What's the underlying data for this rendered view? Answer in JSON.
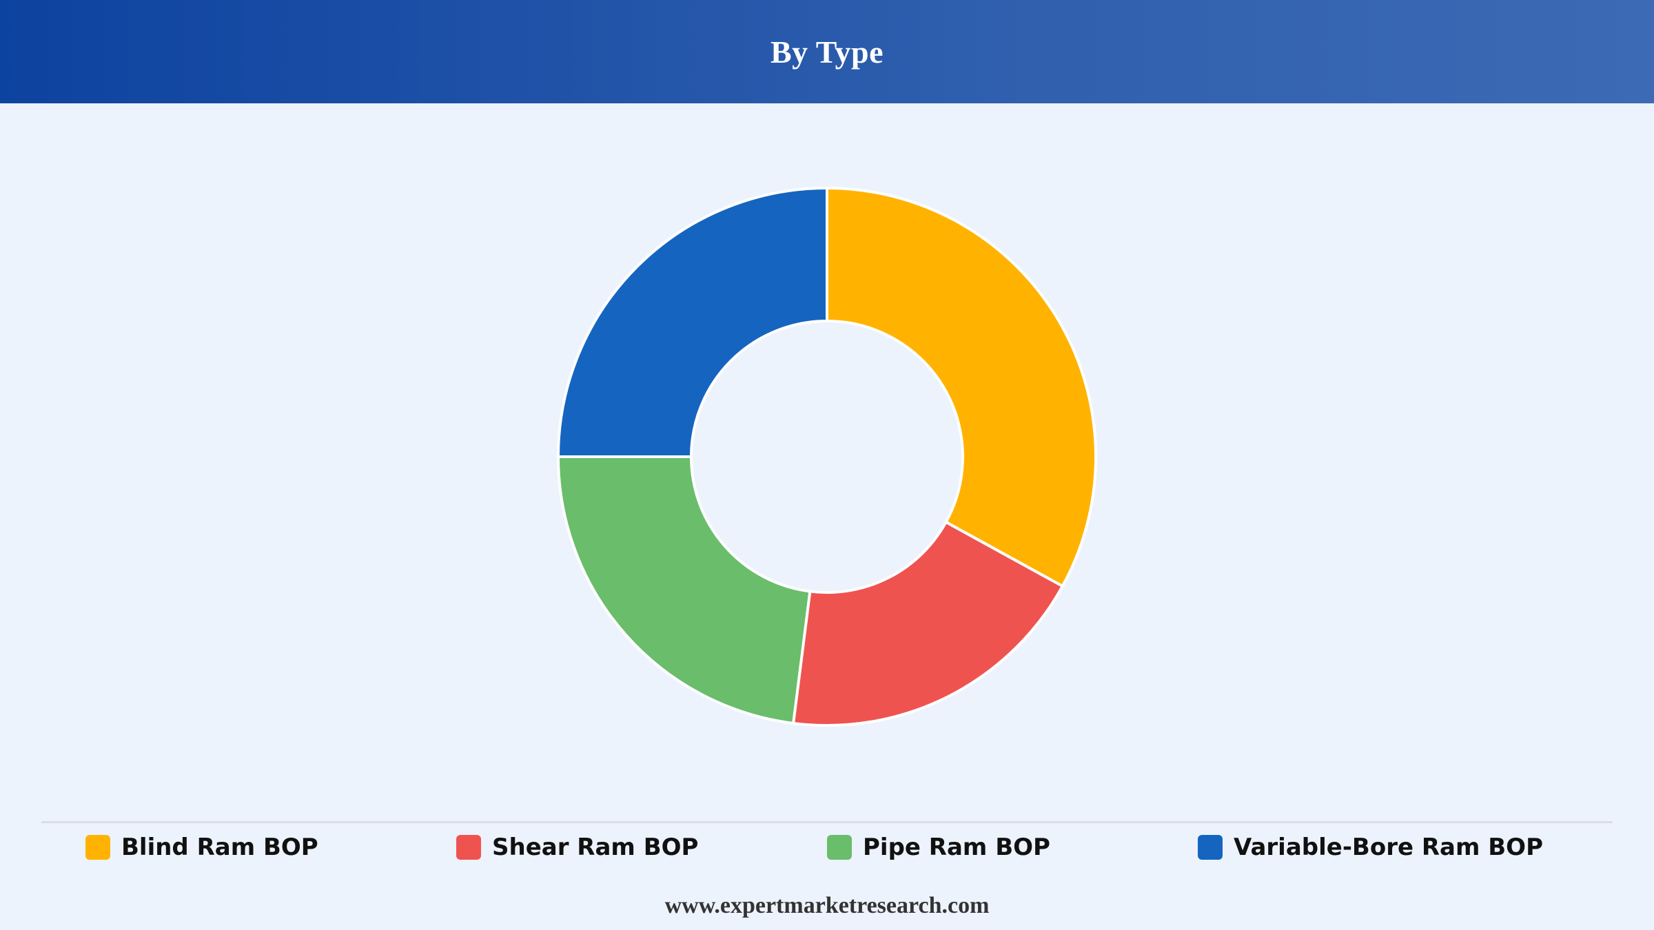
{
  "header": {
    "title": "By Type"
  },
  "chart_data": {
    "type": "pie",
    "donut": true,
    "title": "By Type",
    "legend_position": "bottom",
    "series": [
      {
        "name": "Blind Ram BOP",
        "value": 33,
        "color": "#ffb300"
      },
      {
        "name": "Shear Ram BOP",
        "value": 19,
        "color": "#ef5350"
      },
      {
        "name": "Pipe Ram BOP",
        "value": 23,
        "color": "#6abd6b"
      },
      {
        "name": "Variable-Bore Ram BOP",
        "value": 25,
        "color": "#1565c0"
      }
    ]
  },
  "legend": {
    "items": [
      {
        "label": "Blind Ram BOP",
        "color": "#ffb300"
      },
      {
        "label": "Shear Ram BOP",
        "color": "#ef5350"
      },
      {
        "label": "Pipe Ram BOP",
        "color": "#6abd6b"
      },
      {
        "label": "Variable-Bore Ram BOP",
        "color": "#1565c0"
      }
    ]
  },
  "footer": {
    "url_text": "www.expertmarketresearch.com"
  }
}
